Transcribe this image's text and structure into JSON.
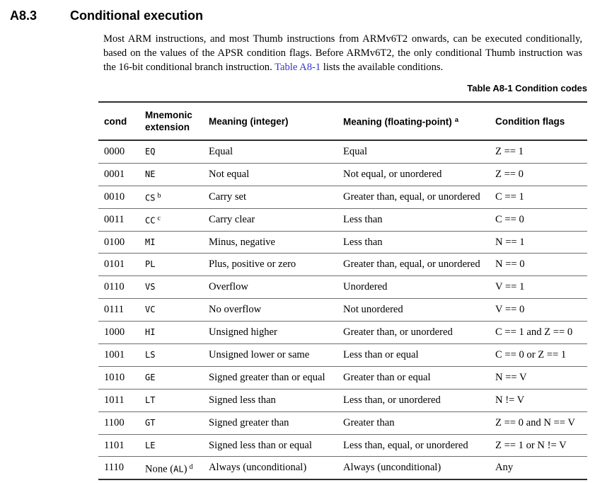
{
  "heading": {
    "number": "A8.3",
    "title": "Conditional execution"
  },
  "intro": {
    "before_link": "Most ARM instructions, and most Thumb instructions from ARMv6T2 onwards, can be executed conditionally, based on the values of the APSR condition flags. Before ARMv6T2, the only conditional Thumb instruction was the 16-bit conditional branch instruction. ",
    "link_text": "Table A8-1",
    "after_link": " lists the available conditions.",
    "link_color": "#3333cc"
  },
  "table": {
    "caption": "Table A8-1 Condition codes",
    "headers": {
      "cond": "cond",
      "mnemonic_line1": "Mnemonic",
      "mnemonic_line2": "extension",
      "meaning_int": "Meaning (integer)",
      "meaning_fp": "Meaning (floating-point)",
      "meaning_fp_note": "a",
      "flags": "Condition flags"
    },
    "rows": [
      {
        "cond": "0000",
        "pre": "",
        "mono": "EQ",
        "post": "",
        "note": "",
        "meaning_int": "Equal",
        "meaning_fp": "Equal",
        "flags": "Z == 1"
      },
      {
        "cond": "0001",
        "pre": "",
        "mono": "NE",
        "post": "",
        "note": "",
        "meaning_int": "Not equal",
        "meaning_fp": "Not equal, or unordered",
        "flags": "Z == 0"
      },
      {
        "cond": "0010",
        "pre": "",
        "mono": "CS",
        "post": "",
        "note": "b",
        "meaning_int": "Carry set",
        "meaning_fp": "Greater than, equal, or unordered",
        "flags": "C == 1"
      },
      {
        "cond": "0011",
        "pre": "",
        "mono": "CC",
        "post": "",
        "note": "c",
        "meaning_int": "Carry clear",
        "meaning_fp": "Less than",
        "flags": "C == 0"
      },
      {
        "cond": "0100",
        "pre": "",
        "mono": "MI",
        "post": "",
        "note": "",
        "meaning_int": "Minus, negative",
        "meaning_fp": "Less than",
        "flags": "N == 1"
      },
      {
        "cond": "0101",
        "pre": "",
        "mono": "PL",
        "post": "",
        "note": "",
        "meaning_int": "Plus, positive or zero",
        "meaning_fp": "Greater than, equal, or unordered",
        "flags": "N == 0"
      },
      {
        "cond": "0110",
        "pre": "",
        "mono": "VS",
        "post": "",
        "note": "",
        "meaning_int": "Overflow",
        "meaning_fp": "Unordered",
        "flags": "V == 1"
      },
      {
        "cond": "0111",
        "pre": "",
        "mono": "VC",
        "post": "",
        "note": "",
        "meaning_int": "No overflow",
        "meaning_fp": "Not unordered",
        "flags": "V == 0"
      },
      {
        "cond": "1000",
        "pre": "",
        "mono": "HI",
        "post": "",
        "note": "",
        "meaning_int": "Unsigned higher",
        "meaning_fp": "Greater than, or unordered",
        "flags": "C == 1 and Z == 0"
      },
      {
        "cond": "1001",
        "pre": "",
        "mono": "LS",
        "post": "",
        "note": "",
        "meaning_int": "Unsigned lower or same",
        "meaning_fp": "Less than or equal",
        "flags": "C == 0 or Z == 1"
      },
      {
        "cond": "1010",
        "pre": "",
        "mono": "GE",
        "post": "",
        "note": "",
        "meaning_int": "Signed greater than or equal",
        "meaning_fp": "Greater than or equal",
        "flags": "N == V"
      },
      {
        "cond": "1011",
        "pre": "",
        "mono": "LT",
        "post": "",
        "note": "",
        "meaning_int": "Signed less than",
        "meaning_fp": "Less than, or unordered",
        "flags": "N != V"
      },
      {
        "cond": "1100",
        "pre": "",
        "mono": "GT",
        "post": "",
        "note": "",
        "meaning_int": "Signed greater than",
        "meaning_fp": "Greater than",
        "flags": "Z == 0 and N == V"
      },
      {
        "cond": "1101",
        "pre": "",
        "mono": "LE",
        "post": "",
        "note": "",
        "meaning_int": "Signed less than or equal",
        "meaning_fp": "Less than, equal, or unordered",
        "flags": "Z == 1 or N != V"
      },
      {
        "cond": "1110",
        "pre": "None (",
        "mono": "AL",
        "post": ")",
        "note": "d",
        "meaning_int": "Always (unconditional)",
        "meaning_fp": "Always (unconditional)",
        "flags": "Any"
      }
    ]
  }
}
